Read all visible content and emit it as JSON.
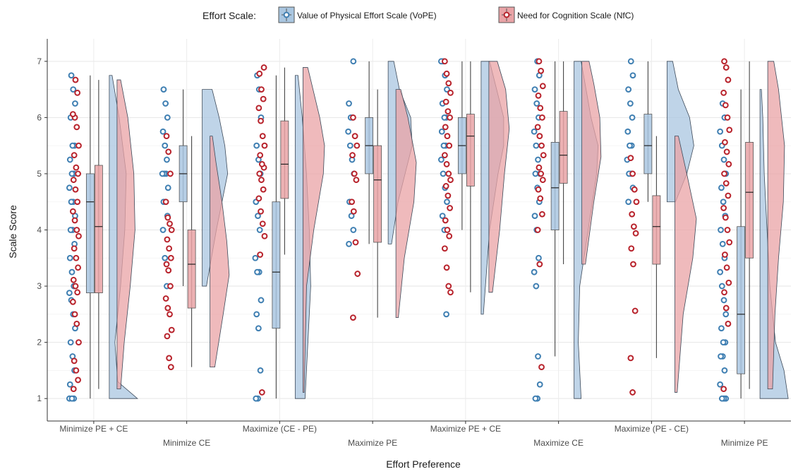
{
  "chart_data": {
    "type": "raincloud",
    "xlabel": "Effort Preference",
    "ylabel": "Scale Score",
    "ylim": [
      0.6,
      7.4
    ],
    "yticks": [
      1,
      2,
      3,
      4,
      5,
      6,
      7
    ],
    "grid": true,
    "legend": {
      "position": "top",
      "title": "Effort Scale:",
      "entries": [
        {
          "name": "Value of Physical Effort Scale (VoPE)",
          "fill": "#a9c6e0",
          "stroke": "#3f7fb2"
        },
        {
          "name": "Need for Cognition Scale (NfC)",
          "fill": "#e9a3a6",
          "stroke": "#b8232c"
        }
      ]
    },
    "categories": [
      "Minimize PE + CE",
      "Minimize CE",
      "Maximize (CE - PE)",
      "Maximize PE",
      "Maximize PE + CE",
      "Maximize CE",
      "Maximize (PE - CE)",
      "Minimize PE"
    ],
    "series": [
      {
        "name": "Value of Physical Effort Scale (VoPE)",
        "box": [
          {
            "min": 1.0,
            "q1": 2.88,
            "median": 4.5,
            "q3": 5.0,
            "max": 6.75
          },
          {
            "min": 3.0,
            "q1": 4.5,
            "median": 5.0,
            "q3": 5.5,
            "max": 6.5
          },
          {
            "min": 1.0,
            "q1": 2.25,
            "median": 3.25,
            "q3": 4.5,
            "max": 6.75
          },
          {
            "min": 3.75,
            "q1": 5.0,
            "median": 5.5,
            "q3": 6.0,
            "max": 7.0
          },
          {
            "min": 4.0,
            "q1": 5.0,
            "median": 5.5,
            "q3": 6.0,
            "max": 7.0
          },
          {
            "min": 1.75,
            "q1": 4.0,
            "median": 4.75,
            "q3": 5.56,
            "max": 7.0
          },
          {
            "min": 4.5,
            "q1": 5.0,
            "median": 5.5,
            "q3": 6.06,
            "max": 7.0
          },
          {
            "min": 1.0,
            "q1": 1.44,
            "median": 2.5,
            "q3": 4.06,
            "max": 6.5
          }
        ],
        "points": [
          [
            1.0,
            1.0,
            1.0,
            1.25,
            1.5,
            1.75,
            2.0,
            2.25,
            2.5,
            2.75,
            2.88,
            3.0,
            3.25,
            3.5,
            3.75,
            4.0,
            4.0,
            4.25,
            4.5,
            4.5,
            4.75,
            5.0,
            5.0,
            5.25,
            5.5,
            5.5,
            6.0,
            6.25,
            6.5,
            6.75
          ],
          [
            3.0,
            3.5,
            4.0,
            4.25,
            4.5,
            4.5,
            4.75,
            5.0,
            5.0,
            5.0,
            5.25,
            5.5,
            5.75,
            6.0,
            6.25,
            6.5
          ],
          [
            1.0,
            1.0,
            1.5,
            2.25,
            2.5,
            2.75,
            3.25,
            3.25,
            3.5,
            4.0,
            4.25,
            4.5,
            5.0,
            5.25,
            5.5,
            6.0,
            6.5,
            6.75
          ],
          [
            3.75,
            4.0,
            4.25,
            4.5,
            5.0,
            5.25,
            5.5,
            5.75,
            6.0,
            6.0,
            6.25,
            7.0
          ],
          [
            2.5,
            4.0,
            4.25,
            4.5,
            4.75,
            5.0,
            5.25,
            5.5,
            5.5,
            5.75,
            6.0,
            6.0,
            6.25,
            6.5,
            6.75,
            7.0,
            7.0
          ],
          [
            1.0,
            1.0,
            1.25,
            1.75,
            3.0,
            3.25,
            3.5,
            4.0,
            4.25,
            4.5,
            4.75,
            5.0,
            5.0,
            5.25,
            5.5,
            5.75,
            6.0,
            6.25,
            6.5,
            6.75,
            7.0
          ],
          [
            4.5,
            4.75,
            5.0,
            5.0,
            5.25,
            5.5,
            5.5,
            5.75,
            6.0,
            6.25,
            6.5,
            6.75,
            7.0
          ],
          [
            1.0,
            1.0,
            1.0,
            1.25,
            1.5,
            1.75,
            1.75,
            2.0,
            2.0,
            2.25,
            2.5,
            2.75,
            3.0,
            3.25,
            3.5,
            3.75,
            4.0,
            4.25,
            4.5,
            4.75,
            5.0,
            5.25,
            5.5,
            5.75,
            6.0,
            6.25
          ]
        ],
        "density": [
          [
            [
              1.0,
              1.0
            ],
            [
              1.3,
              0.3
            ],
            [
              2.0,
              0.2
            ],
            [
              3.0,
              0.4
            ],
            [
              4.0,
              0.55
            ],
            [
              5.0,
              0.6
            ],
            [
              6.0,
              0.35
            ],
            [
              6.75,
              0.1
            ]
          ],
          [
            [
              3.0,
              0.15
            ],
            [
              4.0,
              0.5
            ],
            [
              5.0,
              0.9
            ],
            [
              5.5,
              0.8
            ],
            [
              6.0,
              0.6
            ],
            [
              6.5,
              0.35
            ]
          ],
          [
            [
              1.0,
              0.35
            ],
            [
              2.0,
              0.45
            ],
            [
              3.0,
              0.55
            ],
            [
              4.0,
              0.5
            ],
            [
              5.0,
              0.4
            ],
            [
              6.0,
              0.25
            ],
            [
              6.75,
              0.1
            ]
          ],
          [
            [
              3.75,
              0.12
            ],
            [
              4.5,
              0.35
            ],
            [
              5.0,
              0.6
            ],
            [
              5.5,
              0.85
            ],
            [
              6.0,
              0.8
            ],
            [
              6.5,
              0.4
            ],
            [
              7.0,
              0.2
            ]
          ],
          [
            [
              2.5,
              0.08
            ],
            [
              4.0,
              0.3
            ],
            [
              5.0,
              0.6
            ],
            [
              5.5,
              0.8
            ],
            [
              6.0,
              0.8
            ],
            [
              6.5,
              0.55
            ],
            [
              7.0,
              0.3
            ]
          ],
          [
            [
              1.0,
              0.25
            ],
            [
              2.0,
              0.15
            ],
            [
              3.0,
              0.2
            ],
            [
              4.0,
              0.5
            ],
            [
              5.0,
              0.8
            ],
            [
              5.5,
              0.85
            ],
            [
              6.0,
              0.6
            ],
            [
              7.0,
              0.25
            ]
          ],
          [
            [
              4.5,
              0.3
            ],
            [
              5.0,
              0.7
            ],
            [
              5.5,
              0.95
            ],
            [
              6.0,
              0.8
            ],
            [
              6.5,
              0.4
            ],
            [
              7.0,
              0.2
            ]
          ],
          [
            [
              1.0,
              1.0
            ],
            [
              1.5,
              0.85
            ],
            [
              2.0,
              0.55
            ],
            [
              3.0,
              0.35
            ],
            [
              4.0,
              0.25
            ],
            [
              5.0,
              0.15
            ],
            [
              6.0,
              0.1
            ],
            [
              6.5,
              0.05
            ]
          ]
        ]
      },
      {
        "name": "Need for Cognition Scale (NfC)",
        "box": [
          {
            "min": 1.17,
            "q1": 2.88,
            "median": 4.06,
            "q3": 5.15,
            "max": 6.67
          },
          {
            "min": 1.56,
            "q1": 2.61,
            "median": 3.39,
            "q3": 4.0,
            "max": 5.67
          },
          {
            "min": 3.56,
            "q1": 4.56,
            "median": 5.17,
            "q3": 5.94,
            "max": 6.89
          },
          {
            "min": 2.44,
            "q1": 3.78,
            "median": 4.89,
            "q3": 5.5,
            "max": 6.5
          },
          {
            "min": 2.89,
            "q1": 4.78,
            "median": 5.67,
            "q3": 6.06,
            "max": 7.0
          },
          {
            "min": 3.39,
            "q1": 4.83,
            "median": 5.33,
            "q3": 6.11,
            "max": 7.0
          },
          {
            "min": 1.72,
            "q1": 3.39,
            "median": 4.06,
            "q3": 4.61,
            "max": 5.67
          },
          {
            "min": 1.17,
            "q1": 3.5,
            "median": 4.67,
            "q3": 5.56,
            "max": 7.0
          }
        ],
        "points": [
          [
            1.17,
            1.33,
            1.5,
            1.67,
            2.0,
            2.33,
            2.5,
            2.72,
            2.89,
            3.0,
            3.11,
            3.33,
            3.5,
            3.67,
            3.89,
            4.0,
            4.17,
            4.33,
            4.5,
            4.72,
            4.89,
            5.0,
            5.11,
            5.33,
            5.5,
            5.83,
            6.0,
            6.06,
            6.44,
            6.67
          ],
          [
            1.56,
            1.72,
            2.11,
            2.22,
            2.5,
            2.61,
            2.78,
            3.0,
            3.28,
            3.39,
            3.5,
            3.67,
            3.83,
            4.0,
            4.11,
            4.22,
            4.5,
            5.0,
            5.39,
            5.67
          ],
          [
            1.11,
            3.56,
            3.89,
            4.11,
            4.33,
            4.56,
            4.72,
            4.89,
            5.0,
            5.11,
            5.17,
            5.33,
            5.5,
            5.67,
            5.94,
            6.17,
            6.33,
            6.5,
            6.78,
            6.89
          ],
          [
            2.44,
            3.22,
            3.78,
            4.33,
            4.5,
            4.89,
            5.0,
            5.33,
            5.5,
            5.67,
            6.0
          ],
          [
            2.89,
            3.0,
            3.33,
            3.67,
            3.89,
            4.0,
            4.17,
            4.39,
            4.61,
            4.78,
            4.89,
            5.0,
            5.17,
            5.33,
            5.5,
            5.67,
            5.83,
            6.0,
            6.11,
            6.28,
            6.44,
            6.61,
            6.78,
            7.0
          ],
          [
            1.56,
            3.39,
            4.0,
            4.28,
            4.56,
            4.72,
            4.89,
            5.0,
            5.11,
            5.33,
            5.5,
            5.67,
            5.83,
            6.0,
            6.17,
            6.39,
            6.56,
            6.83,
            7.0
          ],
          [
            1.11,
            1.72,
            2.56,
            3.39,
            3.67,
            3.94,
            4.06,
            4.28,
            4.5,
            4.72,
            5.0,
            5.28
          ],
          [
            1.17,
            2.33,
            2.61,
            2.89,
            3.06,
            3.33,
            3.56,
            3.78,
            4.0,
            4.22,
            4.39,
            4.61,
            4.83,
            5.0,
            5.17,
            5.39,
            5.56,
            5.78,
            6.0,
            6.22,
            6.44,
            6.67,
            6.89,
            7.0
          ]
        ],
        "density": [
          [
            [
              1.17,
              0.15
            ],
            [
              2.0,
              0.3
            ],
            [
              3.0,
              0.55
            ],
            [
              4.0,
              0.75
            ],
            [
              5.0,
              0.7
            ],
            [
              6.0,
              0.45
            ],
            [
              6.67,
              0.15
            ]
          ],
          [
            [
              1.56,
              0.2
            ],
            [
              2.5,
              0.55
            ],
            [
              3.2,
              0.8
            ],
            [
              3.8,
              0.7
            ],
            [
              4.5,
              0.5
            ],
            [
              5.2,
              0.25
            ],
            [
              5.67,
              0.1
            ]
          ],
          [
            [
              1.11,
              0.05
            ],
            [
              3.0,
              0.15
            ],
            [
              4.0,
              0.45
            ],
            [
              5.0,
              0.85
            ],
            [
              5.5,
              0.9
            ],
            [
              6.0,
              0.7
            ],
            [
              6.89,
              0.2
            ]
          ],
          [
            [
              2.44,
              0.1
            ],
            [
              3.5,
              0.35
            ],
            [
              4.5,
              0.75
            ],
            [
              5.2,
              0.85
            ],
            [
              6.0,
              0.5
            ],
            [
              6.5,
              0.2
            ]
          ],
          [
            [
              2.89,
              0.15
            ],
            [
              4.0,
              0.45
            ],
            [
              5.0,
              0.65
            ],
            [
              5.8,
              0.85
            ],
            [
              6.5,
              0.7
            ],
            [
              7.0,
              0.35
            ]
          ],
          [
            [
              3.39,
              0.15
            ],
            [
              4.5,
              0.5
            ],
            [
              5.3,
              0.8
            ],
            [
              6.0,
              0.75
            ],
            [
              6.6,
              0.5
            ],
            [
              7.0,
              0.3
            ]
          ],
          [
            [
              1.11,
              0.1
            ],
            [
              2.5,
              0.35
            ],
            [
              3.5,
              0.75
            ],
            [
              4.2,
              0.9
            ],
            [
              5.0,
              0.5
            ],
            [
              5.67,
              0.15
            ]
          ],
          [
            [
              1.17,
              0.2
            ],
            [
              2.5,
              0.3
            ],
            [
              3.5,
              0.45
            ],
            [
              4.5,
              0.65
            ],
            [
              5.5,
              0.7
            ],
            [
              6.5,
              0.45
            ],
            [
              7.0,
              0.25
            ]
          ]
        ]
      }
    ]
  }
}
